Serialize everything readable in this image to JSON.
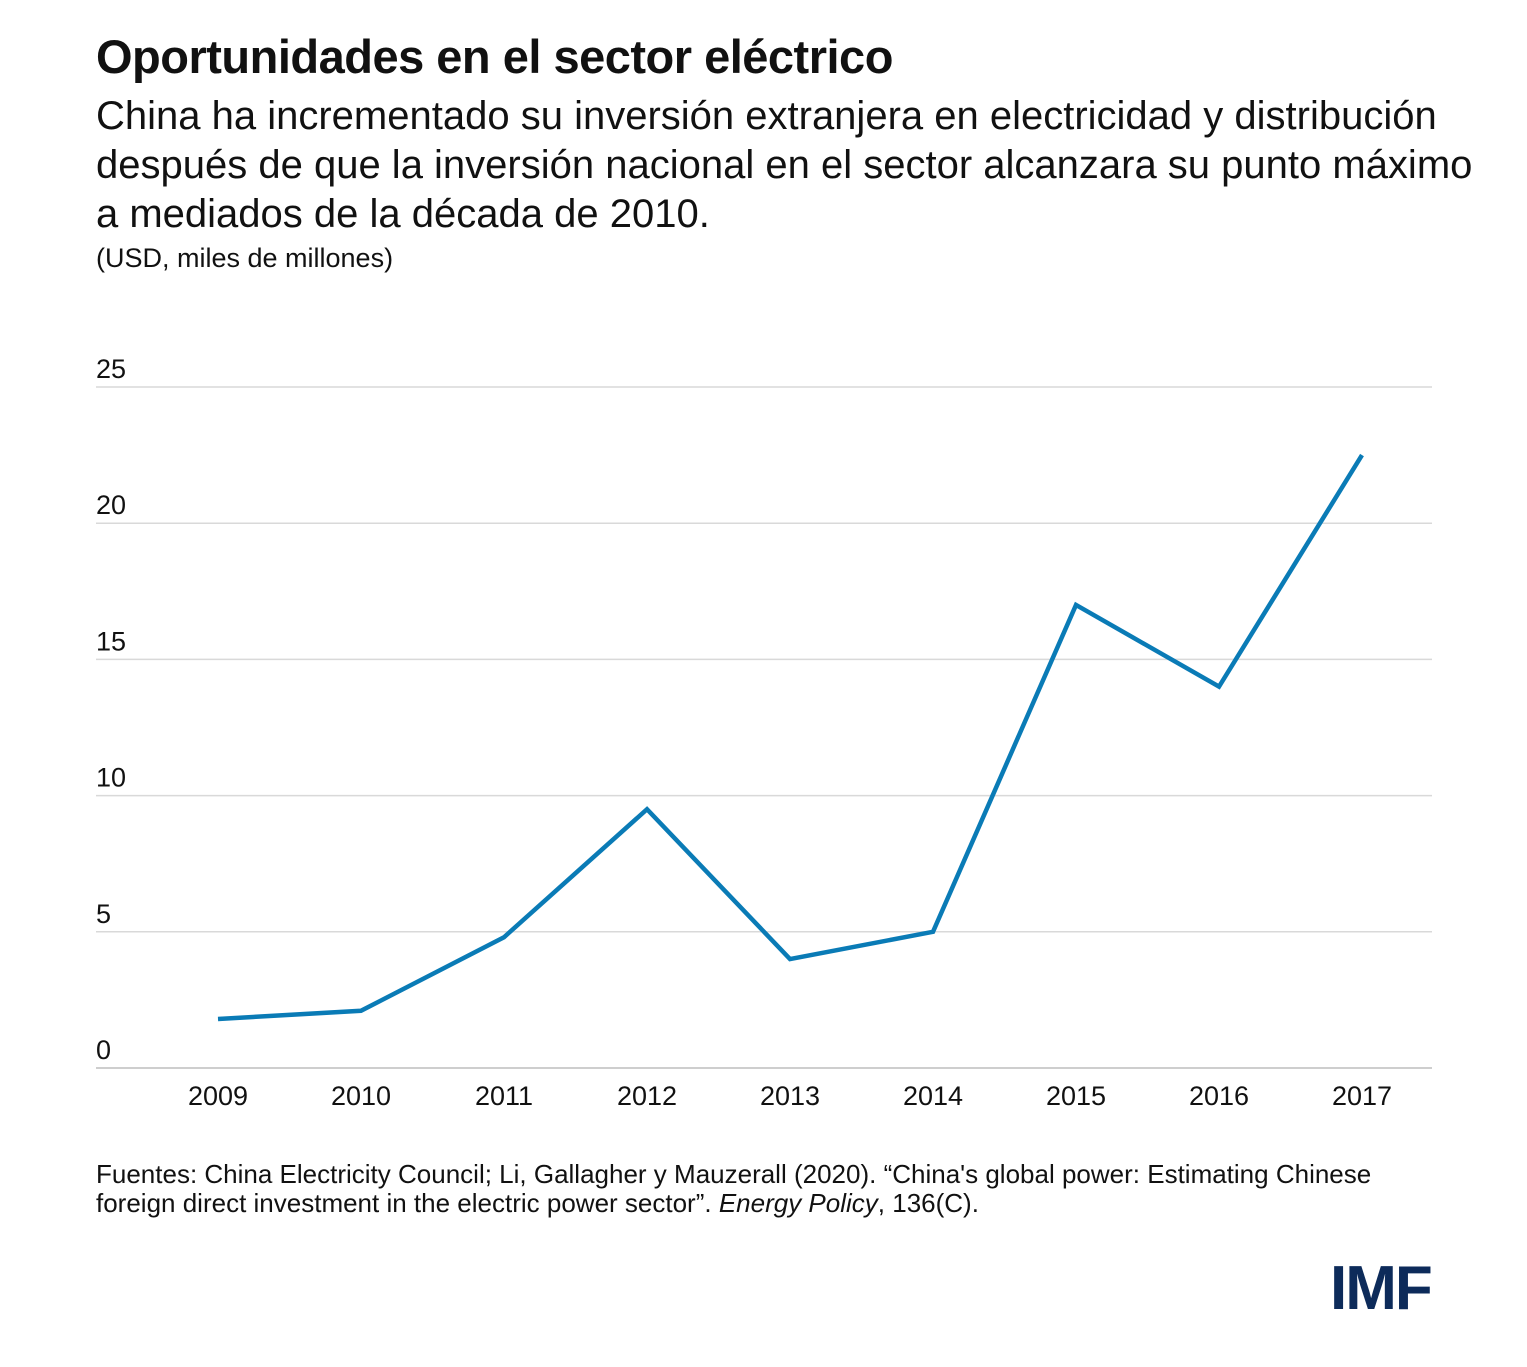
{
  "header": {
    "title": "Oportunidades en el sector eléctrico",
    "subtitle": "China ha incrementado su inversión extranjera en electricidad y distribución después de que la inversión nacional en el sector alcanzara su punto máximo a mediados de la década de 2010.",
    "units": "(USD, miles de millones)"
  },
  "chart_data": {
    "type": "line",
    "title": "Oportunidades en el sector eléctrico",
    "subtitle": "China ha incrementado su inversión extranjera en electricidad y distribución después de que la inversión nacional en el sector alcanzara su punto máximo a mediados de la década de 2010.",
    "ylabel": "(USD, miles de millones)",
    "xlabel": "",
    "categories": [
      "2009",
      "2010",
      "2011",
      "2012",
      "2013",
      "2014",
      "2015",
      "2016",
      "2017"
    ],
    "series": [
      {
        "values": [
          1.8,
          2.1,
          4.8,
          9.5,
          4.0,
          5.0,
          17.0,
          14.0,
          22.5
        ]
      }
    ],
    "ylim": [
      0,
      25
    ],
    "yticks": [
      0,
      5,
      10,
      15,
      20,
      25
    ],
    "grid": true,
    "legend": "none",
    "line_color": "#0a7bb6",
    "grid_color": "#d9d9d9"
  },
  "footer": {
    "source_prefix": "Fuentes: China Electricity Council;  Li, Gallagher y Mauzerall (2020). “China's global power: Estimating Chinese foreign direct investment in the electric power sector”. ",
    "source_journal": "Energy Policy",
    "source_suffix": ", 136(C).",
    "logo": "IMF"
  }
}
